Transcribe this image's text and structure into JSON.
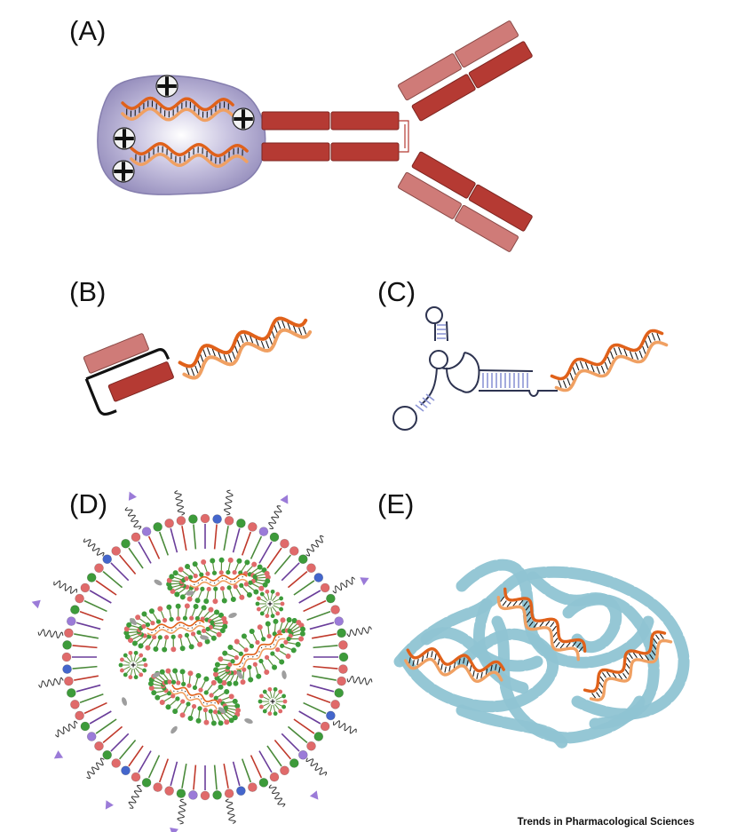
{
  "panels": {
    "a": {
      "label": "(A)",
      "charge_symbol": "+"
    },
    "b": {
      "label": "(B)"
    },
    "c": {
      "label": "(C)"
    },
    "d": {
      "label": "(D)",
      "charge_symbol": "+"
    },
    "e": {
      "label": "(E)"
    }
  },
  "credit": "Trends in Pharmacological Sciences",
  "colors": {
    "antibody_dark": "#b53a33",
    "antibody_light": "#cf7b78",
    "oligo_strand_dark": "#e0611a",
    "oligo_strand_light": "#f0a062",
    "protamine_cloud": "#9e97c2",
    "aptamer_outline": "#2d3350",
    "aptamer_pairs": "#8d96d6",
    "lipid_head_green": "#3d9b3a",
    "lipid_head_red": "#e06a6a",
    "lipid_head_blue": "#4466cc",
    "lipid_head_purple": "#9b7bd8",
    "peg_chain": "#333333",
    "polymer_blue": "#8fc4d3"
  },
  "icons": [
    "plus-charge-icon",
    "ligand-triangle-icon"
  ]
}
